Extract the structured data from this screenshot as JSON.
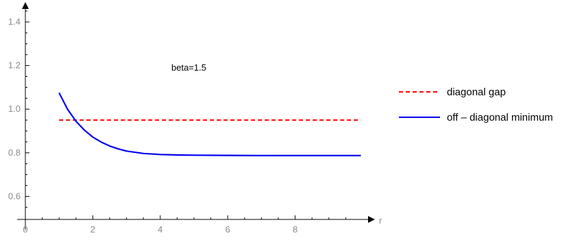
{
  "chart_data": {
    "type": "line",
    "title": "",
    "xlabel": "r",
    "ylabel": "",
    "xlim": [
      0,
      10
    ],
    "ylim": [
      0.5,
      1.5
    ],
    "x_ticks": [
      0,
      2,
      4,
      6,
      8
    ],
    "x_tick_labels": [
      "0",
      "2",
      "4",
      "6",
      "8"
    ],
    "y_ticks": [
      0.6,
      0.8,
      1.0,
      1.2,
      1.4
    ],
    "y_tick_labels": [
      "0.6",
      "0.8",
      "1.0",
      "1.2",
      "1.4"
    ],
    "grid": false,
    "legend_position": "right",
    "annotation": "beta=1.5",
    "series": [
      {
        "name": "diagonal gap",
        "style": "dashed",
        "color": "#ff0000",
        "x": [
          1,
          10
        ],
        "y": [
          0.95,
          0.95
        ]
      },
      {
        "name": "off – diagonal minimum",
        "style": "solid",
        "color": "#0000ee",
        "x": [
          1.0,
          1.25,
          1.5,
          1.75,
          2.0,
          2.25,
          2.5,
          2.75,
          3.0,
          3.5,
          4.0,
          4.5,
          5.0,
          6.0,
          7.0,
          8.0,
          9.0,
          10.0
        ],
        "y": [
          1.075,
          1.0,
          0.945,
          0.904,
          0.872,
          0.849,
          0.831,
          0.818,
          0.808,
          0.797,
          0.792,
          0.79,
          0.789,
          0.788,
          0.787,
          0.787,
          0.787,
          0.787
        ]
      }
    ]
  }
}
